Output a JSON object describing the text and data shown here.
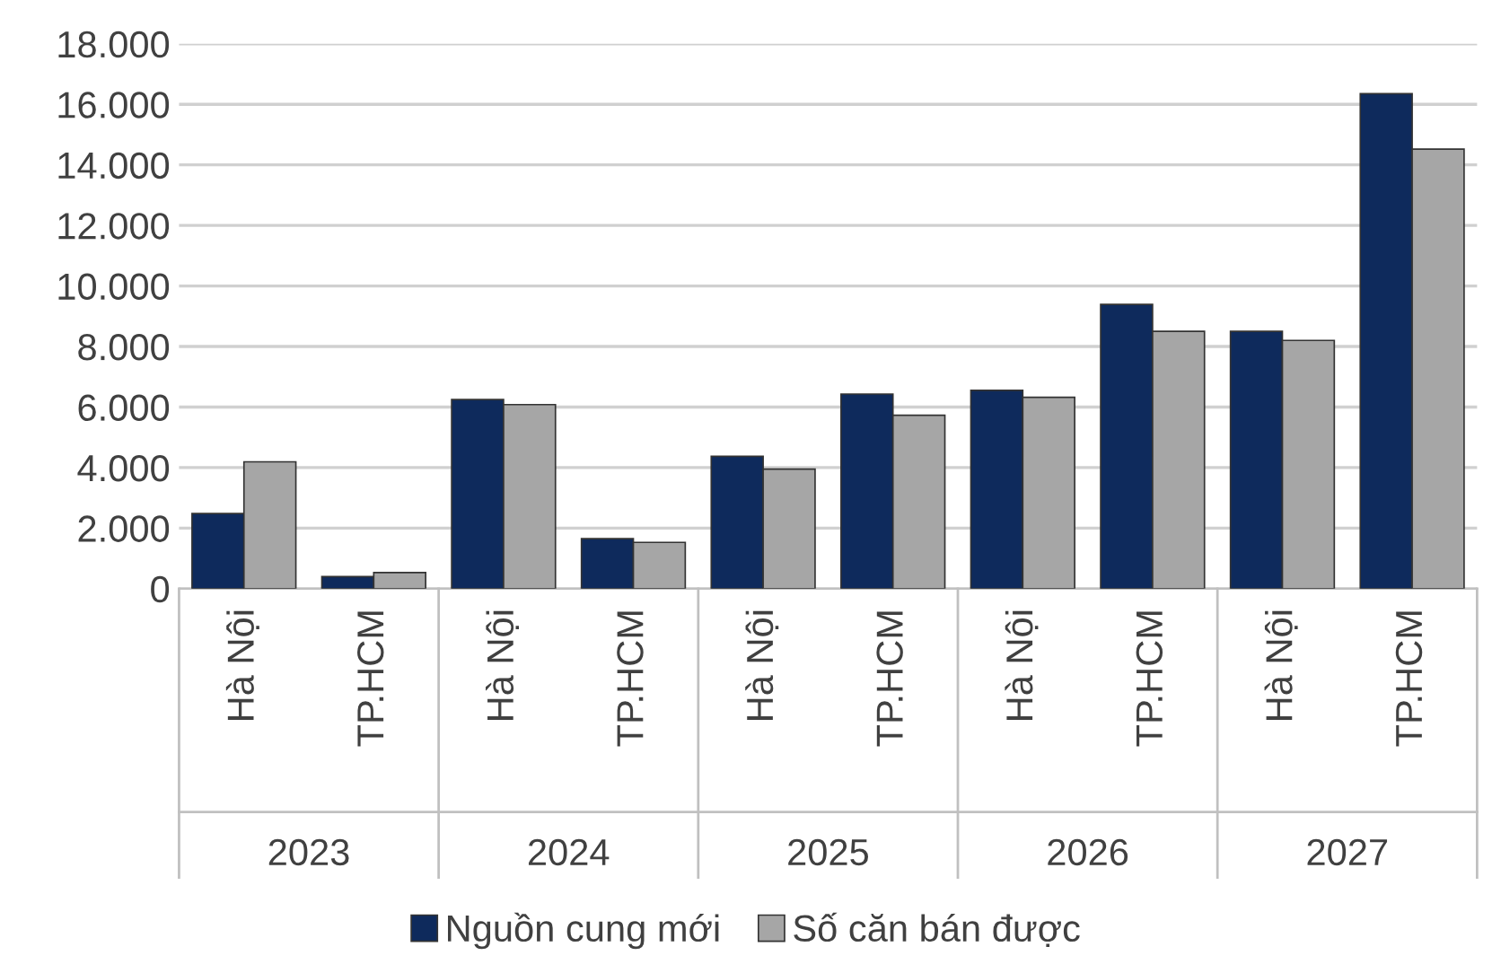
{
  "chart_data": {
    "type": "bar",
    "categories": [
      "Hà Nội",
      "TP.HCM",
      "Hà Nội",
      "TP.HCM",
      "Hà Nội",
      "TP.HCM",
      "Hà Nội",
      "TP.HCM",
      "Hà Nội",
      "TP.HCM"
    ],
    "series": [
      {
        "name": "Nguồn cung mới",
        "color": "#0e2a5c",
        "values": [
          2480,
          400,
          6250,
          1650,
          4370,
          6430,
          6550,
          9390,
          8500,
          16350
        ]
      },
      {
        "name": "Số căn bán được",
        "color": "#a6a6a6",
        "values": [
          4190,
          530,
          6080,
          1530,
          3950,
          5730,
          6320,
          8500,
          8200,
          14520
        ]
      }
    ],
    "annotations": [
      "2023",
      "2024",
      "2025",
      "2026",
      "2027"
    ],
    "ylim": [
      0,
      18000
    ],
    "yticks": [
      0,
      {
        "value": 2000,
        "label": "2.000"
      },
      {
        "value": 4000,
        "label": "4.000"
      },
      {
        "value": 6000,
        "label": "6.000"
      },
      {
        "value": 8000,
        "label": "8.000"
      },
      {
        "value": 10000,
        "label": "10.000"
      },
      {
        "value": 12000,
        "label": "12.000"
      },
      {
        "value": 14000,
        "label": "14.000"
      },
      {
        "value": 16000,
        "label": "16.000"
      },
      {
        "value": 18000,
        "label": "18.000"
      }
    ],
    "grid": "y",
    "legend": "bottom"
  }
}
